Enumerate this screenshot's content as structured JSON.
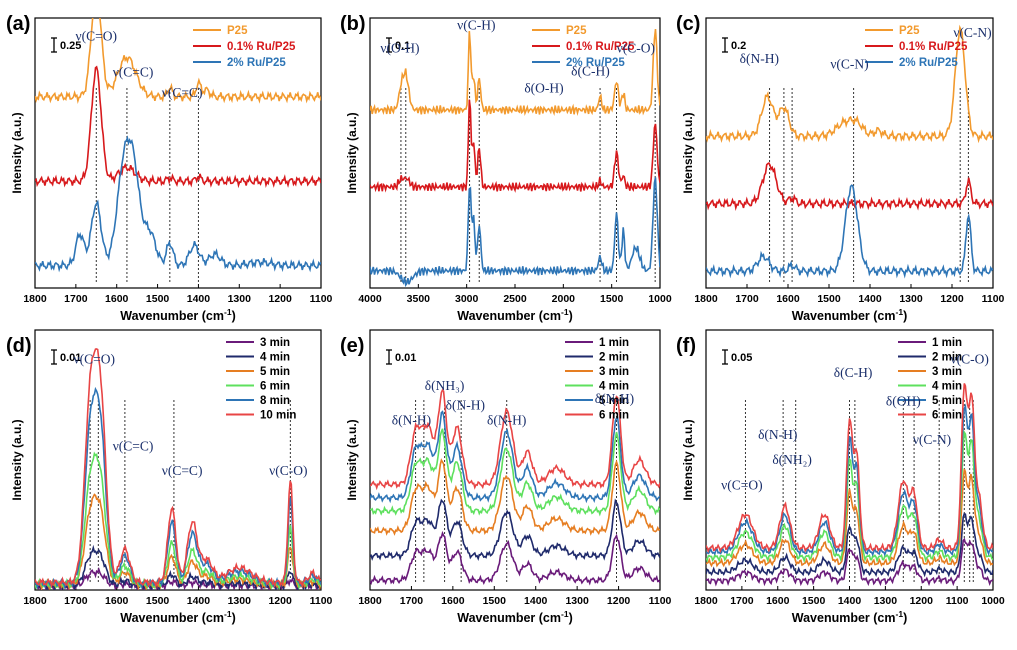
{
  "chart_data": [
    {
      "panel": "(a)",
      "type": "line",
      "xlabel": "Wavenumber (cm⁻¹)",
      "ylabel": "Intensity (a.u.)",
      "xlim": [
        1800,
        1100
      ],
      "xticks": [
        1800,
        1700,
        1600,
        1500,
        1400,
        1300,
        1200,
        1100
      ],
      "scale_bar": "0.25",
      "ylim": [
        -0.15,
        2.25
      ],
      "series": [
        {
          "name": "P25",
          "color": "#f29a2e",
          "offset": 1.5,
          "baseline": 0.05,
          "peaks": [
            [
              1650,
              0.95,
              12
            ],
            [
              1575,
              0.35,
              22
            ],
            [
              1470,
              0.08,
              6
            ],
            [
              1400,
              0.12,
              6
            ],
            [
              1380,
              0.06,
              8
            ]
          ]
        },
        {
          "name": "0.1% Ru/P25",
          "color": "#d7191c",
          "offset": 0.75,
          "baseline": 0.05,
          "peaks": [
            [
              1650,
              1.0,
              12
            ],
            [
              1575,
              0.12,
              20
            ],
            [
              1470,
              0.03,
              6
            ],
            [
              1400,
              0.04,
              6
            ]
          ]
        },
        {
          "name": "2% Ru/P25",
          "color": "#2e75b6",
          "offset": 0.0,
          "baseline": 0.05,
          "peaks": [
            [
              1690,
              0.28,
              10
            ],
            [
              1650,
              0.55,
              12
            ],
            [
              1580,
              0.95,
              18
            ],
            [
              1555,
              0.55,
              14
            ],
            [
              1520,
              0.3,
              15
            ],
            [
              1470,
              0.2,
              8
            ],
            [
              1410,
              0.18,
              12
            ],
            [
              1360,
              0.1,
              14
            ],
            [
              1250,
              0.03,
              25
            ]
          ]
        }
      ],
      "markers": [
        1650,
        1575,
        1470,
        1400
      ],
      "annotations": [
        {
          "text": "ν(C=O)",
          "x": 1650,
          "y": 2.05
        },
        {
          "text": "ν(C=C)",
          "x": 1560,
          "y": 1.73
        },
        {
          "text": "ν(C=C)",
          "x": 1440,
          "y": 1.55
        }
      ]
    },
    {
      "panel": "(b)",
      "type": "line",
      "xlabel": "Wavenumber (cm⁻¹)",
      "ylabel": "Intensity (a.u.)",
      "xlim": [
        4000,
        1000
      ],
      "xticks": [
        4000,
        3500,
        3000,
        2500,
        2000,
        1500,
        1000
      ],
      "scale_bar": "0.1",
      "ylim": [
        -0.1,
        2.25
      ],
      "series": [
        {
          "name": "P25",
          "color": "#f29a2e",
          "offset": 1.45,
          "baseline": 0.0,
          "peaks": [
            [
              3680,
              0.15,
              25
            ],
            [
              3630,
              0.3,
              30
            ],
            [
              2970,
              0.7,
              12
            ],
            [
              2930,
              0.3,
              15
            ],
            [
              2870,
              0.28,
              15
            ],
            [
              1620,
              0.12,
              15
            ],
            [
              1450,
              0.25,
              20
            ],
            [
              1380,
              0.15,
              15
            ],
            [
              1050,
              0.7,
              20
            ]
          ]
        },
        {
          "name": "0.1% Ru/P25",
          "color": "#d7191c",
          "offset": 0.78,
          "baseline": 0.0,
          "peaks": [
            [
              3680,
              0.06,
              25
            ],
            [
              3620,
              0.07,
              30
            ],
            [
              2970,
              0.8,
              12
            ],
            [
              2930,
              0.4,
              15
            ],
            [
              2870,
              0.35,
              15
            ],
            [
              1620,
              0.05,
              15
            ],
            [
              1450,
              0.3,
              20
            ],
            [
              1380,
              0.1,
              15
            ],
            [
              1050,
              0.55,
              20
            ]
          ]
        },
        {
          "name": "2% Ru/P25",
          "color": "#2e75b6",
          "offset": 0.05,
          "baseline": 0.0,
          "peaks": [
            [
              3620,
              -0.1,
              60
            ],
            [
              2970,
              0.75,
              14
            ],
            [
              2930,
              0.45,
              16
            ],
            [
              2870,
              0.4,
              16
            ],
            [
              1620,
              0.12,
              18
            ],
            [
              1450,
              0.5,
              18
            ],
            [
              1380,
              0.35,
              15
            ],
            [
              1250,
              0.2,
              40
            ],
            [
              1050,
              0.8,
              22
            ]
          ]
        }
      ],
      "markers": [
        3680,
        3630,
        2970,
        2870,
        1620,
        1450,
        1050
      ],
      "annotations": [
        {
          "text": "ν(O-H)",
          "x": 3690,
          "y": 1.95
        },
        {
          "text": "ν(C-H)",
          "x": 2900,
          "y": 2.15
        },
        {
          "text": "δ(C-H)",
          "x": 1720,
          "y": 1.75
        },
        {
          "text": "ν(C-O)",
          "x": 1250,
          "y": 1.95
        },
        {
          "text": "δ(O-H)",
          "x": 2200,
          "y": 1.6
        }
      ]
    },
    {
      "panel": "(c)",
      "type": "line",
      "xlabel": "Wavenumber (cm⁻¹)",
      "ylabel": "Intensity (a.u.)",
      "xlim": [
        1800,
        1100
      ],
      "xticks": [
        1800,
        1700,
        1600,
        1500,
        1400,
        1300,
        1200,
        1100
      ],
      "scale_bar": "0.2",
      "ylim": [
        -0.15,
        2.25
      ],
      "series": [
        {
          "name": "P25",
          "color": "#f29a2e",
          "offset": 1.2,
          "baseline": 0.0,
          "peaks": [
            [
              1650,
              0.35,
              14
            ],
            [
              1610,
              0.25,
              12
            ],
            [
              1460,
              0.12,
              22
            ],
            [
              1430,
              0.08,
              15
            ],
            [
              1380,
              0.05,
              10
            ],
            [
              1180,
              0.95,
              12
            ]
          ]
        },
        {
          "name": "0.1% Ru/P25",
          "color": "#d7191c",
          "offset": 0.6,
          "baseline": 0.0,
          "peaks": [
            [
              1645,
              0.35,
              16
            ],
            [
              1590,
              0.05,
              8
            ],
            [
              1160,
              0.2,
              6
            ]
          ]
        },
        {
          "name": "2% Ru/P25",
          "color": "#2e75b6",
          "offset": 0.0,
          "baseline": 0.0,
          "peaks": [
            [
              1660,
              0.13,
              14
            ],
            [
              1590,
              0.05,
              8
            ],
            [
              1445,
              0.75,
              15
            ],
            [
              1160,
              0.5,
              6
            ]
          ]
        }
      ],
      "markers": [
        1645,
        1610,
        1590,
        1440,
        1180,
        1160
      ],
      "annotations": [
        {
          "text": "δ(N-H)",
          "x": 1670,
          "y": 1.85
        },
        {
          "text": "ν(C-N)",
          "x": 1450,
          "y": 1.8
        },
        {
          "text": "ν(C-N)",
          "x": 1150,
          "y": 2.08
        }
      ]
    },
    {
      "panel": "(d)",
      "type": "line",
      "xlabel": "Wavenumber (cm⁻¹)",
      "ylabel": "Intensity (a.u.)",
      "xlim": [
        1800,
        1100
      ],
      "xticks": [
        1800,
        1700,
        1600,
        1500,
        1400,
        1300,
        1200,
        1100
      ],
      "scale_bar": "0.01",
      "ylim": [
        -0.02,
        1.38
      ],
      "series": [
        {
          "name": "3 min",
          "color": "#6a1b7a",
          "scale": 0.06,
          "offset": 0.0
        },
        {
          "name": "4 min",
          "color": "#1f2a6b",
          "scale": 0.15,
          "offset": 0.0
        },
        {
          "name": "5 min",
          "color": "#e67e22",
          "scale": 0.38,
          "offset": 0.0
        },
        {
          "name": "6 min",
          "color": "#5ee05e",
          "scale": 0.55,
          "offset": 0.0
        },
        {
          "name": "8 min",
          "color": "#2e75b6",
          "scale": 0.82,
          "offset": 0.0
        },
        {
          "name": "10 min",
          "color": "#e84545",
          "scale": 1.0,
          "offset": 0.0
        }
      ],
      "shape": [
        [
          1665,
          0.92,
          14
        ],
        [
          1640,
          0.95,
          14
        ],
        [
          1580,
          0.18,
          12
        ],
        [
          1465,
          0.4,
          10
        ],
        [
          1415,
          0.32,
          12
        ],
        [
          1380,
          0.12,
          15
        ],
        [
          1300,
          0.08,
          30
        ],
        [
          1175,
          0.55,
          6
        ],
        [
          1120,
          0.05,
          10
        ]
      ],
      "markers": [
        1665,
        1645,
        1580,
        1460,
        1175
      ],
      "annotations": [
        {
          "text": "ν(C=O)",
          "x": 1655,
          "y": 1.2
        },
        {
          "text": "ν(C=C)",
          "x": 1560,
          "y": 0.73
        },
        {
          "text": "ν(C=C)",
          "x": 1440,
          "y": 0.6
        },
        {
          "text": "ν(C-O)",
          "x": 1180,
          "y": 0.6
        }
      ]
    },
    {
      "panel": "(e)",
      "type": "line",
      "xlabel": "Wavenumber (cm⁻¹)",
      "ylabel": "Intensity (a.u.)",
      "xlim": [
        1800,
        1100
      ],
      "xticks": [
        1800,
        1700,
        1600,
        1500,
        1400,
        1300,
        1200,
        1100
      ],
      "scale_bar": "0.01",
      "ylim": [
        -0.05,
        1.55
      ],
      "series": [
        {
          "name": "1 min",
          "color": "#6a1b7a",
          "scale": 0.5,
          "offset": 0.0
        },
        {
          "name": "2 min",
          "color": "#1f2a6b",
          "scale": 0.6,
          "offset": 0.15
        },
        {
          "name": "3 min",
          "color": "#e67e22",
          "scale": 0.75,
          "offset": 0.3
        },
        {
          "name": "4 min",
          "color": "#5ee05e",
          "scale": 0.85,
          "offset": 0.42
        },
        {
          "name": "5 min",
          "color": "#2e75b6",
          "scale": 0.9,
          "offset": 0.5
        },
        {
          "name": "6 min",
          "color": "#e84545",
          "scale": 1.0,
          "offset": 0.58
        }
      ],
      "shape": [
        [
          1690,
          0.3,
          12
        ],
        [
          1660,
          0.35,
          15
        ],
        [
          1625,
          0.55,
          10
        ],
        [
          1590,
          0.35,
          12
        ],
        [
          1470,
          0.45,
          15
        ],
        [
          1420,
          0.2,
          12
        ],
        [
          1350,
          0.1,
          20
        ],
        [
          1205,
          0.55,
          10
        ],
        [
          1150,
          0.15,
          15
        ]
      ],
      "markers": [
        1690,
        1670,
        1620,
        1580,
        1470,
        1205
      ],
      "annotations": [
        {
          "text": "δ(N-H)",
          "x": 1700,
          "y": 0.97
        },
        {
          "text": "δ(NH₃)",
          "x": 1620,
          "y": 1.18
        },
        {
          "text": "δ(N-H)",
          "x": 1570,
          "y": 1.06
        },
        {
          "text": "δ(N-H)",
          "x": 1470,
          "y": 0.97
        },
        {
          "text": "δ(N-H)",
          "x": 1210,
          "y": 1.1
        }
      ]
    },
    {
      "panel": "(f)",
      "type": "line",
      "xlabel": "Wavenumber (cm⁻¹)",
      "ylabel": "Intensity (a.u.)",
      "xlim": [
        1800,
        1000
      ],
      "xticks": [
        1800,
        1700,
        1600,
        1500,
        1400,
        1300,
        1200,
        1100,
        1000
      ],
      "scale_bar": "0.05",
      "ylim": [
        -0.05,
        1.5
      ],
      "series": [
        {
          "name": "1 min",
          "color": "#6a1b7a",
          "scale": 0.25,
          "offset": 0.0
        },
        {
          "name": "2 min",
          "color": "#1f2a6b",
          "scale": 0.35,
          "offset": 0.05
        },
        {
          "name": "3 min",
          "color": "#e67e22",
          "scale": 0.55,
          "offset": 0.1
        },
        {
          "name": "4 min",
          "color": "#5ee05e",
          "scale": 0.75,
          "offset": 0.13
        },
        {
          "name": "5 min",
          "color": "#2e75b6",
          "scale": 0.88,
          "offset": 0.16
        },
        {
          "name": "6 min",
          "color": "#e84545",
          "scale": 1.0,
          "offset": 0.18
        }
      ],
      "shape": [
        [
          1690,
          0.2,
          20
        ],
        [
          1580,
          0.25,
          14
        ],
        [
          1470,
          0.2,
          15
        ],
        [
          1400,
          0.75,
          8
        ],
        [
          1380,
          0.55,
          8
        ],
        [
          1250,
          0.4,
          14
        ],
        [
          1220,
          0.3,
          10
        ],
        [
          1150,
          0.05,
          10
        ],
        [
          1080,
          0.95,
          8
        ],
        [
          1060,
          0.85,
          8
        ],
        [
          1040,
          0.3,
          10
        ]
      ],
      "markers": [
        1690,
        1585,
        1550,
        1400,
        1385,
        1250,
        1220,
        1150,
        1080,
        1065,
        1055
      ],
      "annotations": [
        {
          "text": "ν(C=O)",
          "x": 1700,
          "y": 0.55
        },
        {
          "text": "δ(N-H)",
          "x": 1600,
          "y": 0.85
        },
        {
          "text": "δ(NH₂)",
          "x": 1560,
          "y": 0.7
        },
        {
          "text": "δ(C-H)",
          "x": 1390,
          "y": 1.22
        },
        {
          "text": "δ(OH)",
          "x": 1250,
          "y": 1.05
        },
        {
          "text": "ν(C-N)",
          "x": 1170,
          "y": 0.82
        },
        {
          "text": "ν(C-O)",
          "x": 1065,
          "y": 1.3
        }
      ]
    }
  ]
}
